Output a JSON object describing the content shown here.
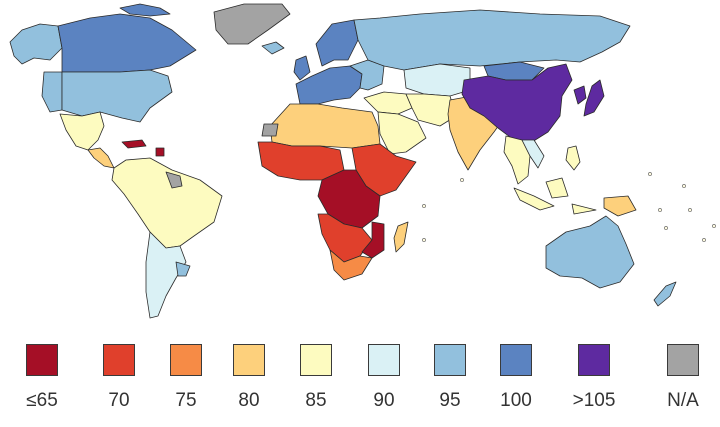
{
  "legend": {
    "items": [
      {
        "label": "≤65",
        "color": "#a50f26"
      },
      {
        "label": "70",
        "color": "#e0402c"
      },
      {
        "label": "75",
        "color": "#f68b46"
      },
      {
        "label": "80",
        "color": "#fdd07c"
      },
      {
        "label": "85",
        "color": "#fdfbc0"
      },
      {
        "label": "90",
        "color": "#daf1f5"
      },
      {
        "label": "95",
        "color": "#92c0dd"
      },
      {
        "label": "100",
        "color": "#5b83c1"
      },
      {
        "label": ">105",
        "color": "#5e2aa0"
      },
      {
        "label": "N/A",
        "color": "#a3a3a3"
      }
    ]
  },
  "regions": {
    "north-america": {
      "bin": "100"
    },
    "alaska": {
      "bin": "95"
    },
    "canada-west": {
      "bin": "95"
    },
    "greenland": {
      "bin": "N/A"
    },
    "mexico": {
      "bin": "85"
    },
    "central-america": {
      "bin": "80"
    },
    "caribbean": {
      "bin": "≤65"
    },
    "south-america-north": {
      "bin": "85"
    },
    "south-america-east": {
      "bin": "85"
    },
    "andes": {
      "bin": "85"
    },
    "argentina": {
      "bin": "90"
    },
    "uruguay": {
      "bin": "95"
    },
    "guianas": {
      "bin": "N/A"
    },
    "north-africa": {
      "bin": "80"
    },
    "western-sahara": {
      "bin": "N/A"
    },
    "west-africa": {
      "bin": "70"
    },
    "central-africa": {
      "bin": "≤65"
    },
    "east-africa-horn": {
      "bin": "70"
    },
    "southern-africa": {
      "bin": "70"
    },
    "mozambique": {
      "bin": "≤65"
    },
    "south-africa": {
      "bin": "75"
    },
    "madagascar": {
      "bin": "80"
    },
    "europe": {
      "bin": "100"
    },
    "scandinavia": {
      "bin": "100"
    },
    "iceland": {
      "bin": "95"
    },
    "uk": {
      "bin": "100"
    },
    "eastern-europe": {
      "bin": "95"
    },
    "russia": {
      "bin": "95"
    },
    "central-asia": {
      "bin": "90"
    },
    "middle-east": {
      "bin": "85"
    },
    "arabia": {
      "bin": "85"
    },
    "iran": {
      "bin": "85"
    },
    "india": {
      "bin": "80"
    },
    "china": {
      "bin": ">105"
    },
    "mongolia": {
      "bin": "100"
    },
    "korea-japan": {
      "bin": ">105"
    },
    "southeast-asia": {
      "bin": "85"
    },
    "vietnam-laos": {
      "bin": "90"
    },
    "indonesia": {
      "bin": "85"
    },
    "philippines": {
      "bin": "85"
    },
    "papua": {
      "bin": "80"
    },
    "australia": {
      "bin": "95"
    },
    "new-zealand": {
      "bin": "95"
    }
  }
}
